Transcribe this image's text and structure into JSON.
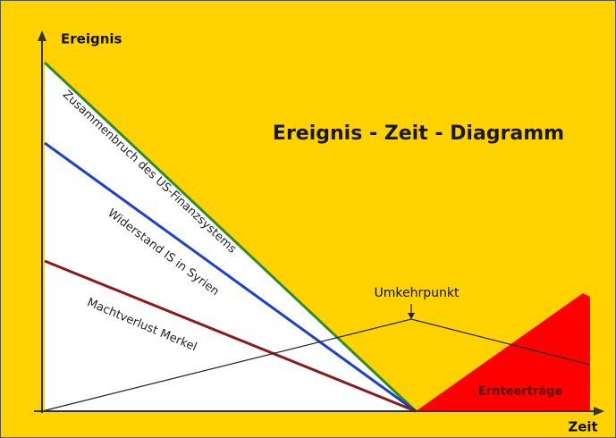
{
  "title": "Ereignis - Zeit - Diagramm",
  "axes": {
    "y_label": "Ereignis",
    "x_label": "Zeit"
  },
  "lines": [
    {
      "label": "Zusammenbruch des US-Finanzsystems"
    },
    {
      "label": "Widerstand IS in Syrien"
    },
    {
      "label": "Machtverlust Merkel"
    }
  ],
  "annotations": {
    "turning_point": "Umkehrpunkt",
    "harvest": "Ernteerträge"
  }
}
